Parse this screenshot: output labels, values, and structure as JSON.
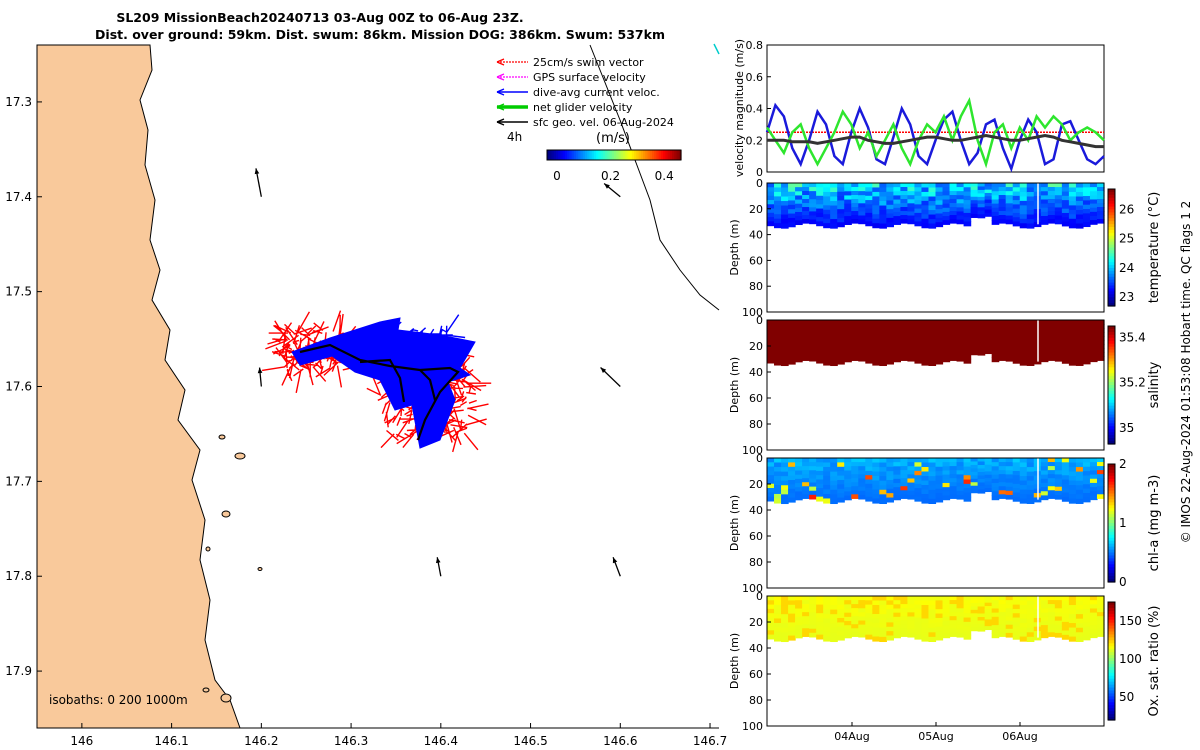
{
  "title_line1": "SL209 MissionBeach20240713 03-Aug 00Z to 06-Aug 23Z.",
  "title_line2": "Dist. over ground: 59km. Dist. swum: 86km. Mission DOG: 386km. Swum: 537km",
  "credit": "© IMOS 22-Aug-2024 01:53:08 Hobart time. QC flags 1  2",
  "colors": {
    "land": "#f9c99b",
    "swim": "#ff0000",
    "gps": "#ff00ff",
    "current": "#0000ff",
    "net": "#00cc00",
    "geo": "#000000"
  },
  "chart_data": [
    {
      "type": "map",
      "name": "track-map",
      "xlim": [
        145.95,
        146.71
      ],
      "ylim": [
        17.24,
        17.96
      ],
      "x_ticks": [
        "146",
        "146.1",
        "146.2",
        "146.3",
        "146.4",
        "146.5",
        "146.6",
        "146.7"
      ],
      "y_ticks": [
        "17.3",
        "17.4",
        "17.5",
        "17.6",
        "17.7",
        "17.8",
        "17.9"
      ],
      "legend": [
        "25cm/s swim vector",
        "GPS surface velocity",
        "dive-avg current veloc.",
        "net glider velocity",
        "sfc geo. vel. 06-Aug-2024"
      ],
      "scale_label": "4h",
      "colorbar": {
        "label": "(m/s)",
        "ticks": [
          "0",
          "0.2",
          "0.4"
        ],
        "range": [
          0,
          0.5
        ]
      },
      "isobaths_label": "isobaths: 0   200  1000m",
      "geo_vectors": [
        {
          "lon": 146.2,
          "lat": 17.4,
          "dlon": -0.006,
          "dlat": -0.03
        },
        {
          "lon": 146.6,
          "lat": 17.4,
          "dlon": -0.018,
          "dlat": -0.014
        },
        {
          "lon": 146.2,
          "lat": 17.6,
          "dlon": -0.002,
          "dlat": -0.02
        },
        {
          "lon": 146.6,
          "lat": 17.6,
          "dlon": -0.022,
          "dlat": -0.02
        },
        {
          "lon": 146.4,
          "lat": 17.8,
          "dlon": -0.004,
          "dlat": -0.02
        },
        {
          "lon": 146.6,
          "lat": 17.8,
          "dlon": -0.008,
          "dlat": -0.02
        }
      ]
    },
    {
      "type": "line",
      "name": "velocity-panel",
      "ylabel": "velocity magnitude (m/s)",
      "ylim": [
        0,
        0.8
      ],
      "y_ticks": [
        "0",
        "0.2",
        "0.4",
        "0.6",
        "0.8"
      ],
      "xlim": [
        0,
        4
      ],
      "series": [
        {
          "name": "swim 0.25",
          "values": [
            0.25,
            0.25,
            0.25,
            0.25,
            0.25,
            0.25,
            0.25,
            0.25,
            0.25,
            0.25,
            0.25,
            0.25,
            0.25,
            0.25,
            0.25,
            0.25,
            0.25,
            0.25,
            0.25,
            0.25,
            0.25,
            0.25,
            0.25,
            0.25,
            0.25,
            0.25,
            0.25,
            0.25,
            0.25,
            0.25,
            0.25,
            0.25,
            0.25,
            0.25,
            0.25,
            0.25,
            0.25,
            0.25,
            0.25,
            0.25,
            0.25
          ]
        },
        {
          "name": "dive-avg current",
          "values": [
            0.25,
            0.42,
            0.35,
            0.15,
            0.05,
            0.2,
            0.38,
            0.3,
            0.1,
            0.05,
            0.25,
            0.4,
            0.28,
            0.08,
            0.05,
            0.22,
            0.4,
            0.3,
            0.1,
            0.05,
            0.2,
            0.33,
            0.38,
            0.2,
            0.05,
            0.12,
            0.3,
            0.33,
            0.15,
            0.02,
            0.2,
            0.33,
            0.25,
            0.05,
            0.08,
            0.3,
            0.32,
            0.2,
            0.08,
            0.05,
            0.1
          ]
        },
        {
          "name": "net glider",
          "values": [
            0.28,
            0.2,
            0.12,
            0.25,
            0.3,
            0.15,
            0.05,
            0.15,
            0.25,
            0.38,
            0.3,
            0.15,
            0.25,
            0.1,
            0.2,
            0.3,
            0.15,
            0.05,
            0.2,
            0.3,
            0.25,
            0.35,
            0.2,
            0.35,
            0.45,
            0.2,
            0.05,
            0.25,
            0.3,
            0.15,
            0.28,
            0.2,
            0.35,
            0.28,
            0.35,
            0.3,
            0.2,
            0.25,
            0.28,
            0.25,
            0.2
          ]
        },
        {
          "name": "geo",
          "values": [
            0.2,
            0.2,
            0.2,
            0.19,
            0.19,
            0.19,
            0.18,
            0.19,
            0.2,
            0.21,
            0.22,
            0.22,
            0.2,
            0.19,
            0.18,
            0.18,
            0.19,
            0.2,
            0.21,
            0.22,
            0.22,
            0.21,
            0.2,
            0.2,
            0.21,
            0.22,
            0.23,
            0.22,
            0.21,
            0.2,
            0.2,
            0.21,
            0.22,
            0.23,
            0.22,
            0.2,
            0.19,
            0.18,
            0.17,
            0.16,
            0.16
          ]
        }
      ]
    },
    {
      "type": "heatmap",
      "name": "temperature-panel",
      "ylabel": "Depth (m)",
      "ylim": [
        0,
        100
      ],
      "y_ticks": [
        "0",
        "20",
        "40",
        "60",
        "80",
        "100"
      ],
      "cbar_label": "temperature (°C)",
      "cbar_ticks": [
        "23",
        "24",
        "25",
        "26"
      ],
      "crange": [
        22.7,
        26.7
      ],
      "base": 23.1,
      "surface": 24.2
    },
    {
      "type": "heatmap",
      "name": "salinity-panel",
      "ylabel": "Depth (m)",
      "ylim": [
        0,
        100
      ],
      "y_ticks": [
        "0",
        "20",
        "40",
        "60",
        "80",
        "100"
      ],
      "cbar_label": "salinity",
      "cbar_ticks": [
        "35",
        "35.2",
        "35.4"
      ],
      "crange": [
        34.93,
        35.45
      ],
      "base": 35.45,
      "surface": 35.45
    },
    {
      "type": "heatmap",
      "name": "chla-panel",
      "ylabel": "Depth (m)",
      "ylim": [
        0,
        100
      ],
      "y_ticks": [
        "0",
        "20",
        "40",
        "60",
        "80",
        "100"
      ],
      "cbar_label": "chl-a (mg m-3)",
      "cbar_ticks": [
        "0",
        "1",
        "2"
      ],
      "crange": [
        0,
        2
      ],
      "base": 0.45,
      "surface": 0.6
    },
    {
      "type": "heatmap",
      "name": "oxygen-panel",
      "ylabel": "Depth (m)",
      "ylim": [
        0,
        100
      ],
      "y_ticks": [
        "0",
        "20",
        "40",
        "60",
        "80",
        "100"
      ],
      "cbar_label": "Ox. sat. ratio (%)",
      "cbar_ticks": [
        "50",
        "100",
        "150"
      ],
      "crange": [
        20,
        175
      ],
      "base": 113,
      "surface": 116
    }
  ],
  "time_ticks": [
    "04Aug",
    "05Aug",
    "06Aug"
  ]
}
